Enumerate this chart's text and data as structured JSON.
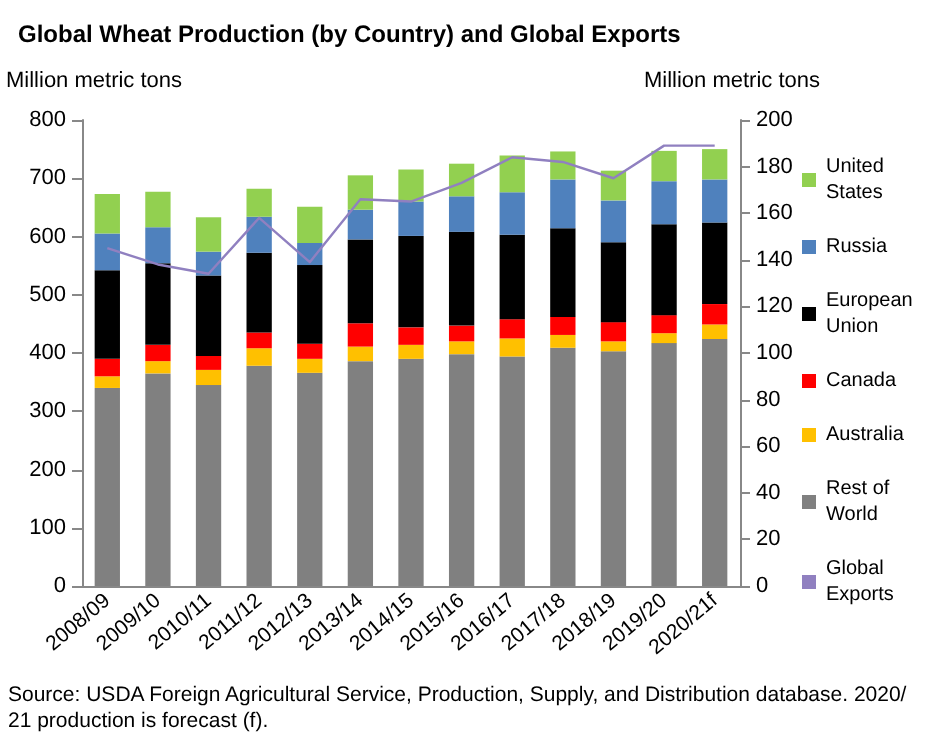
{
  "chart_data": {
    "type": "bar",
    "title": "Global Wheat Production (by Country) and Global Exports",
    "ylabel": "Million metric tons",
    "y2label": "Million metric tons",
    "categories": [
      "2008/09",
      "2009/10",
      "2010/11",
      "2011/12",
      "2012/13",
      "2013/14",
      "2014/15",
      "2015/16",
      "2016/17",
      "2017/18",
      "2018/19",
      "2019/20",
      "2020/21f"
    ],
    "stacked": true,
    "series": [
      {
        "name": "Rest of World",
        "color": "#808080",
        "values": [
          340,
          365,
          345,
          378,
          366,
          386,
          390,
          398,
          394,
          409,
          403,
          417,
          424
        ]
      },
      {
        "name": "Australia",
        "color": "#ffc000",
        "values": [
          20,
          21,
          26,
          30,
          24,
          25,
          24,
          22,
          31,
          22,
          17,
          17,
          25
        ]
      },
      {
        "name": "Canada",
        "color": "#ff0000",
        "values": [
          30,
          28,
          24,
          27,
          26,
          40,
          30,
          27,
          33,
          31,
          33,
          31,
          35
        ]
      },
      {
        "name": "European Union",
        "color": "#000000",
        "values": [
          152,
          140,
          138,
          137,
          135,
          144,
          157,
          161,
          145,
          152,
          137,
          156,
          140
        ]
      },
      {
        "name": "Russia",
        "color": "#4f81bd",
        "values": [
          63,
          62,
          41,
          62,
          38,
          51,
          59,
          61,
          73,
          84,
          72,
          74,
          74
        ]
      },
      {
        "name": "United States",
        "color": "#92d050",
        "values": [
          68,
          61,
          59,
          48,
          62,
          59,
          55,
          56,
          63,
          48,
          51,
          52,
          52
        ]
      },
      {
        "name": "Global Exports",
        "type": "line",
        "axis": "y2",
        "color": "#9080c0",
        "values": [
          145,
          138,
          134,
          158,
          139,
          166,
          165,
          173,
          184,
          182,
          175,
          189,
          189
        ]
      }
    ],
    "ylim": [
      0,
      800
    ],
    "yticks": [
      0,
      100,
      200,
      300,
      400,
      500,
      600,
      700,
      800
    ],
    "y2lim": [
      0,
      200
    ],
    "y2ticks": [
      0,
      20,
      40,
      60,
      80,
      100,
      120,
      140,
      160,
      180,
      200
    ],
    "grid": false,
    "legend": "right",
    "marker": "none",
    "annotations": [
      "Source: USDA Foreign Agricultural Service, Production, Supply, and Distribution database. 2020/21 production is forecast (f)."
    ]
  }
}
